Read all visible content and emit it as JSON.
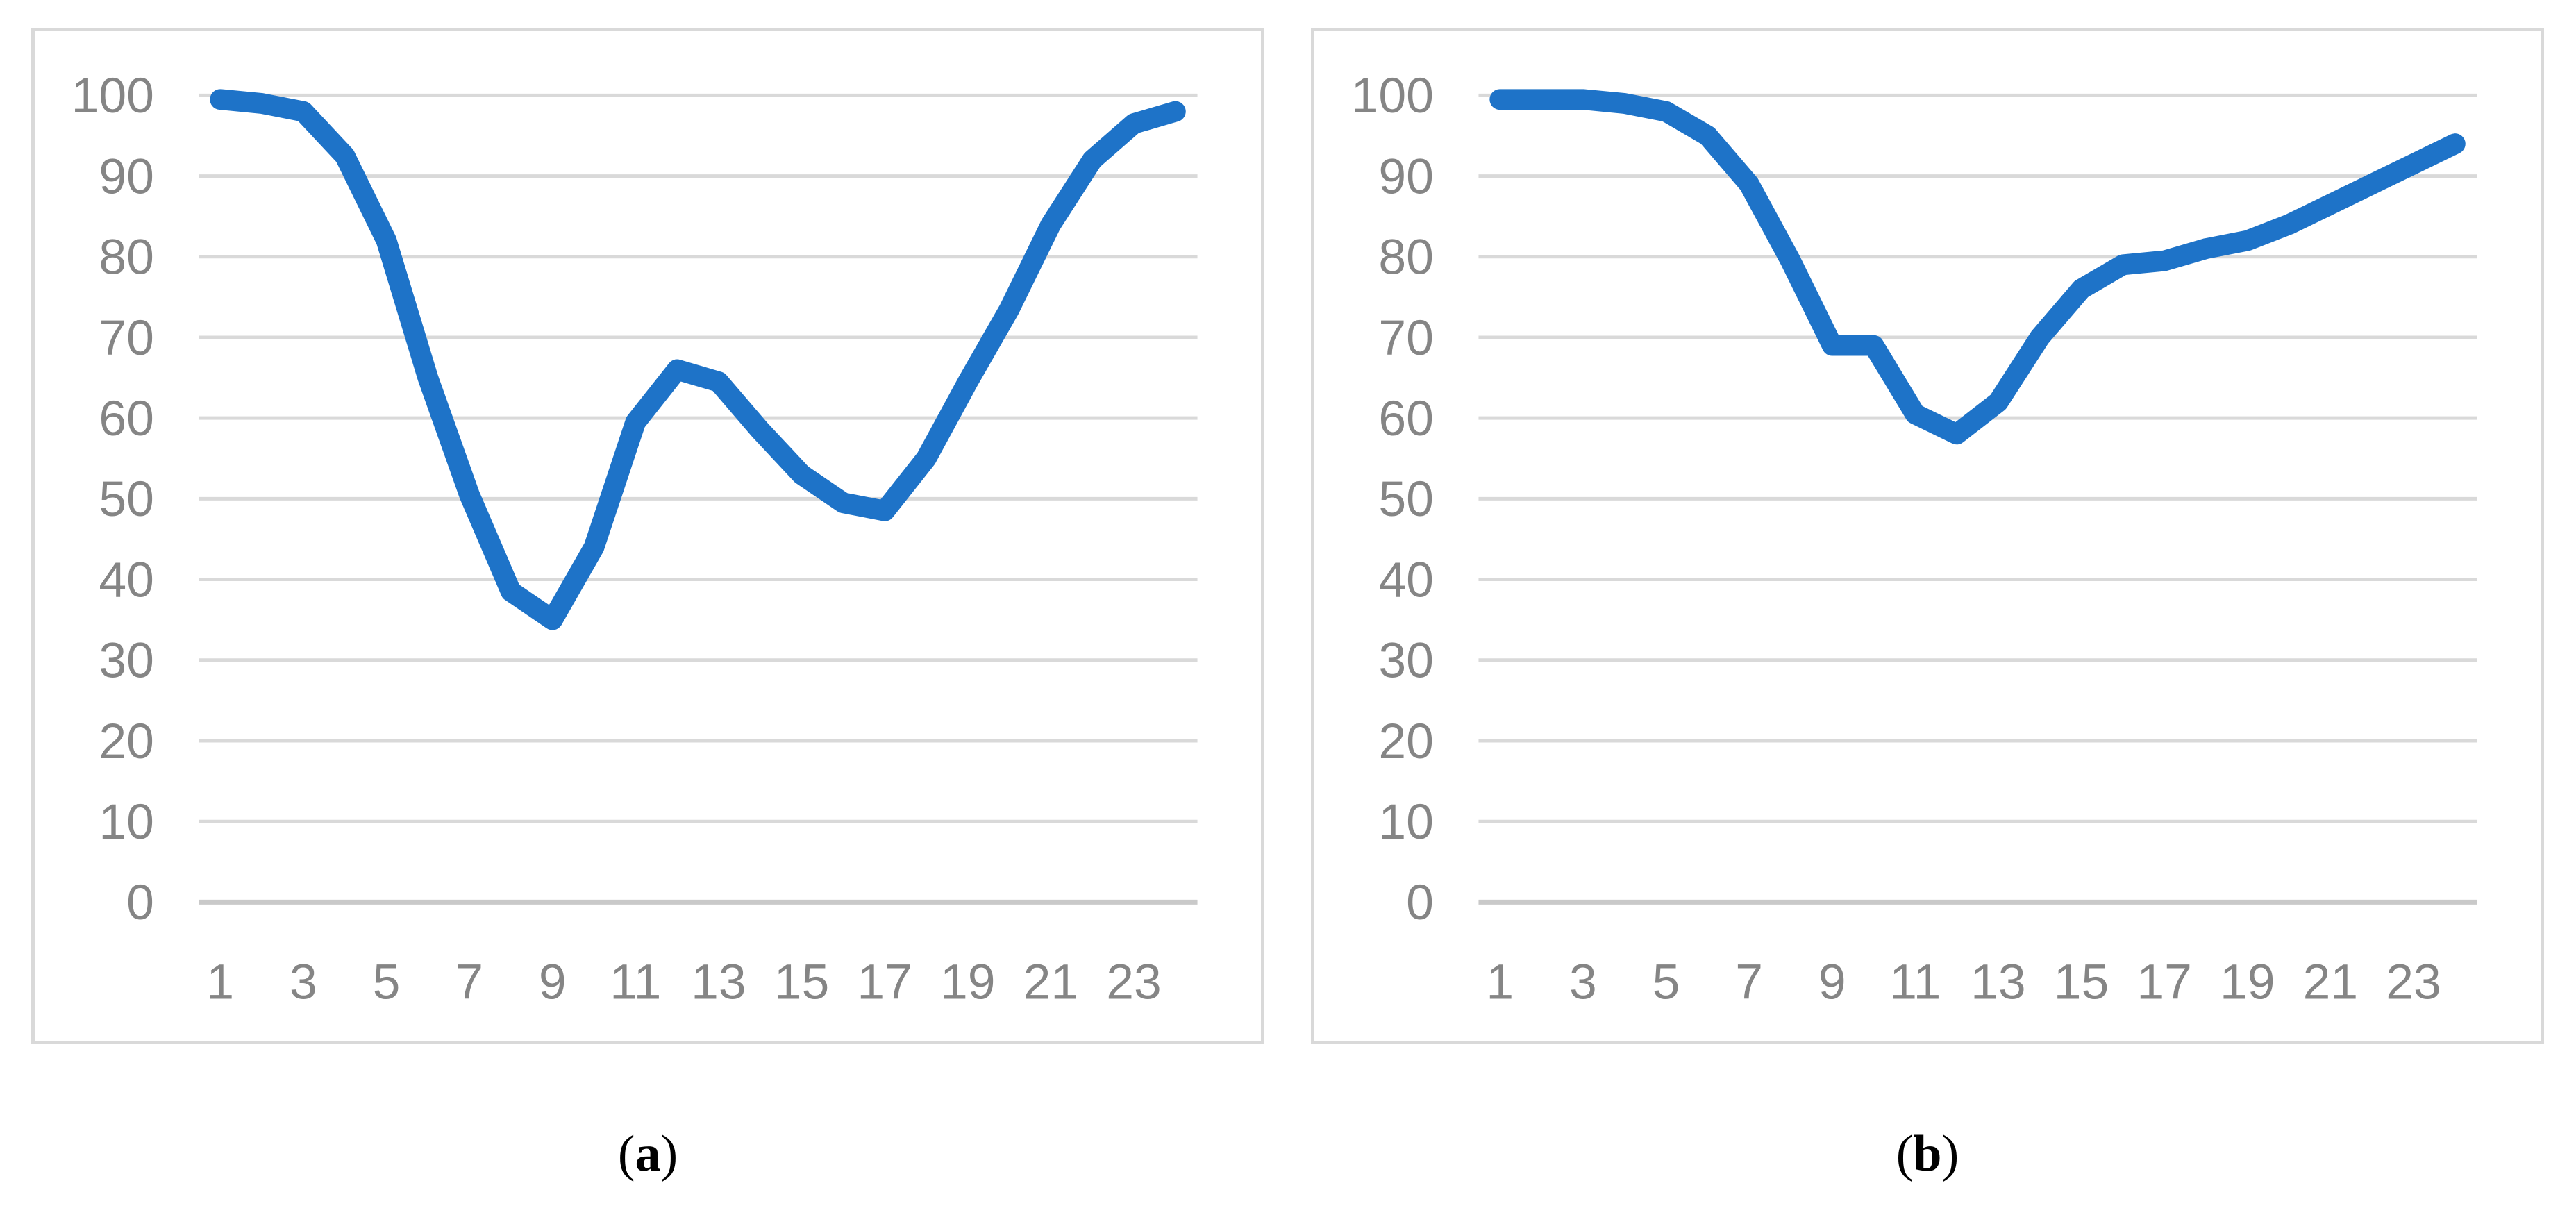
{
  "page": {
    "background_color": "#ffffff",
    "description": "Two side-by-side Excel-style line charts labeled (a) and (b)"
  },
  "style": {
    "line_color": "#1e73c8",
    "grid_color": "#d9d9d9",
    "axis_line_color": "#c9c9c9",
    "tick_label_color": "#858585",
    "panel_border_color": "#d9d9d9",
    "caption_color": "#000000"
  },
  "captions": {
    "a": {
      "open": "(",
      "letter": "a",
      "close": ")"
    },
    "b": {
      "open": "(",
      "letter": "b",
      "close": ")"
    }
  },
  "chart_data": [
    {
      "type": "line",
      "title": "",
      "xlabel": "",
      "ylabel": "",
      "legend_position": "none",
      "grid": true,
      "ylim": [
        0,
        100
      ],
      "xlim": [
        1,
        24
      ],
      "y_tick_labels": [
        "100",
        "90",
        "80",
        "70",
        "60",
        "50",
        "40",
        "30",
        "20",
        "10",
        "0"
      ],
      "x_tick_labels": [
        "1",
        "3",
        "5",
        "7",
        "9",
        "11",
        "13",
        "15",
        "17",
        "19",
        "21",
        "23"
      ],
      "x": [
        1,
        2,
        3,
        4,
        5,
        6,
        7,
        8,
        9,
        10,
        11,
        12,
        13,
        14,
        15,
        16,
        17,
        18,
        19,
        20,
        21,
        22,
        23,
        24
      ],
      "values": [
        99.5,
        99,
        98,
        92.5,
        82,
        65,
        50.5,
        38.5,
        35,
        44,
        59.5,
        66,
        64.5,
        58.5,
        53,
        49.5,
        48.5,
        55,
        64.5,
        73.5,
        84,
        92,
        96.5,
        98
      ]
    },
    {
      "type": "line",
      "title": "",
      "xlabel": "",
      "ylabel": "",
      "legend_position": "none",
      "grid": true,
      "ylim": [
        0,
        100
      ],
      "xlim": [
        1,
        24
      ],
      "y_tick_labels": [
        "100",
        "90",
        "80",
        "70",
        "60",
        "50",
        "40",
        "30",
        "20",
        "10",
        "0"
      ],
      "x_tick_labels": [
        "1",
        "3",
        "5",
        "7",
        "9",
        "11",
        "13",
        "15",
        "17",
        "19",
        "21",
        "23"
      ],
      "x": [
        1,
        2,
        3,
        4,
        5,
        6,
        7,
        8,
        9,
        10,
        11,
        12,
        13,
        14,
        15,
        16,
        17,
        18,
        19,
        20,
        21,
        22,
        23,
        24
      ],
      "values": [
        99.5,
        99.5,
        99.5,
        99,
        98,
        95,
        89,
        79.5,
        69,
        69,
        60.5,
        58,
        62,
        70,
        76,
        79,
        79.5,
        81,
        82,
        84,
        86.5,
        89,
        91.5,
        94
      ]
    }
  ]
}
